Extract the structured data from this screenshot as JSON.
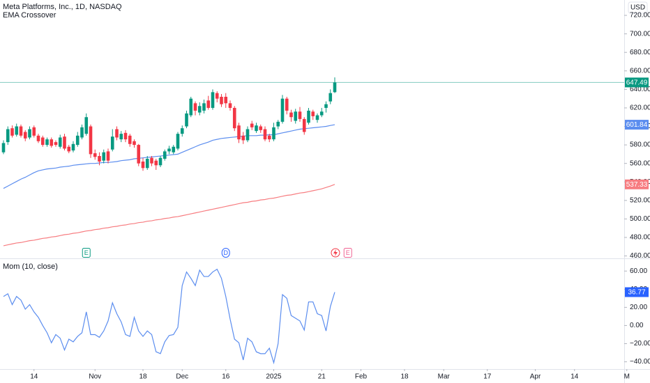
{
  "header": {
    "symbol": "Meta Platforms, Inc., 1D, NASDAQ",
    "indicator": "EMA Crossover",
    "currency": "USD"
  },
  "chart_data": [
    {
      "type": "candlestick",
      "up_color": "#089981",
      "down_color": "#f23645",
      "xlim": [
        -0.8,
        142.4
      ],
      "ylim": [
        457.4,
        736.6
      ],
      "yticks": [
        {
          "value": 460,
          "label": "460.00"
        },
        {
          "value": 480,
          "label": "480.00"
        },
        {
          "value": 500,
          "label": "500.00"
        },
        {
          "value": 520,
          "label": "520.00"
        },
        {
          "value": 540,
          "label": "540.00"
        },
        {
          "value": 560,
          "label": "560.00"
        },
        {
          "value": 580,
          "label": "580.00"
        },
        {
          "value": 600,
          "label": "600.00"
        },
        {
          "value": 620,
          "label": "620.00"
        },
        {
          "value": 640,
          "label": "640.00"
        },
        {
          "value": 660,
          "label": "660.00"
        },
        {
          "value": 680,
          "label": "680.00"
        },
        {
          "value": 700,
          "label": "700.00"
        },
        {
          "value": 720,
          "label": "720.00"
        }
      ],
      "open": [
        572,
        583,
        598,
        591,
        600,
        594,
        588,
        599,
        590,
        588,
        580,
        586,
        583,
        578,
        589,
        578,
        574,
        580,
        588,
        592,
        600,
        571,
        568,
        563,
        573,
        575,
        597,
        586,
        593,
        590,
        584,
        580,
        562,
        555,
        566,
        563,
        558,
        565,
        573,
        572,
        576,
        592,
        600,
        612,
        625,
        615,
        617,
        628,
        620,
        636,
        632,
        632,
        625,
        620,
        601,
        590,
        585,
        603,
        595,
        600,
        597,
        590,
        586,
        600,
        605,
        630,
        615,
        606,
        616,
        608,
        604,
        616,
        607,
        612,
        620,
        627,
        637
      ],
      "high": [
        585,
        600,
        601,
        603,
        602,
        596,
        600,
        601,
        592,
        590,
        588,
        588,
        585,
        591,
        592,
        580,
        584,
        594,
        602,
        614,
        602,
        575,
        572,
        575,
        576,
        597,
        600,
        595,
        596,
        592,
        586,
        581,
        566,
        568,
        568,
        565,
        568,
        575,
        579,
        580,
        594,
        601,
        617,
        632,
        627,
        626,
        629,
        633,
        640,
        638,
        635,
        636,
        628,
        622,
        604,
        594,
        600,
        606,
        604,
        602,
        600,
        592,
        604,
        607,
        634,
        632,
        618,
        619,
        621,
        610,
        620,
        618,
        614,
        620,
        627,
        640,
        653
      ],
      "low": [
        570,
        580,
        588,
        589,
        588,
        584,
        586,
        588,
        582,
        578,
        578,
        577,
        578,
        576,
        574,
        571,
        572,
        578,
        586,
        590,
        566,
        564,
        558,
        560,
        560,
        573,
        585,
        583,
        583,
        578,
        577,
        557,
        552,
        553,
        557,
        553,
        556,
        563,
        570,
        570,
        574,
        589,
        598,
        610,
        612,
        612,
        614,
        618,
        618,
        626,
        621,
        620,
        617,
        595,
        582,
        581,
        583,
        596,
        593,
        593,
        584,
        583,
        584,
        597,
        603,
        613,
        605,
        603,
        605,
        591,
        602,
        607,
        604,
        610,
        615,
        624,
        636
      ],
      "close": [
        582,
        597,
        590,
        600,
        590,
        587,
        597,
        590,
        584,
        580,
        586,
        579,
        580,
        588,
        576,
        573,
        581,
        590,
        599,
        610,
        570,
        567,
        562,
        572,
        563,
        589,
        588,
        592,
        586,
        581,
        580,
        560,
        555,
        565,
        560,
        558,
        566,
        573,
        576,
        578,
        592,
        598,
        614,
        630,
        617,
        622,
        625,
        620,
        637,
        630,
        624,
        625,
        620,
        598,
        586,
        585,
        597,
        599,
        601,
        596,
        586,
        586,
        599,
        605,
        630,
        617,
        610,
        616,
        608,
        594,
        617,
        611,
        612,
        616,
        624,
        636,
        647.49
      ],
      "lines": [
        {
          "color": "#5b8def",
          "values": [
            533,
            535.5,
            538,
            540.5,
            543,
            545,
            547.5,
            550,
            552,
            553,
            554,
            554.5,
            555,
            556,
            556.5,
            557,
            558,
            558.5,
            559,
            559.5,
            560,
            560,
            560.5,
            561,
            561,
            561.5,
            562,
            563,
            563.5,
            564,
            565,
            565.5,
            566,
            566.5,
            567,
            567.5,
            568,
            568.5,
            569,
            569.5,
            570,
            572,
            574,
            576,
            578,
            580,
            581.5,
            583,
            585,
            586,
            587,
            587.5,
            588,
            588.5,
            589,
            589.5,
            590,
            590,
            590,
            590.5,
            590.5,
            591,
            591,
            592,
            593,
            594,
            595,
            596,
            597,
            597.5,
            598,
            598.5,
            599,
            599.5,
            600,
            601,
            601.84
          ]
        },
        {
          "color": "#f77c80",
          "values": [
            471,
            472,
            473,
            474,
            474.5,
            475.5,
            476.5,
            477,
            478,
            479,
            479.5,
            480.5,
            481,
            482,
            483,
            483.5,
            484.5,
            485,
            486,
            487,
            487.5,
            488.5,
            489,
            490,
            490.5,
            491.5,
            492,
            493,
            493.5,
            494.5,
            495,
            496,
            496.5,
            497.5,
            498,
            499,
            499.5,
            500.5,
            501,
            502,
            502.5,
            503.5,
            504.5,
            505.5,
            506.5,
            507.5,
            508.5,
            509.5,
            510.5,
            511.5,
            512.5,
            513.5,
            514.5,
            515.5,
            516.5,
            517.5,
            518,
            519,
            519.5,
            520.5,
            521,
            522,
            522.5,
            523.5,
            524.5,
            525.5,
            526,
            527,
            528,
            528.5,
            529.5,
            530.5,
            531.5,
            532.5,
            534,
            535.5,
            537.33
          ]
        }
      ],
      "events": [
        {
          "index": 19,
          "label": "E",
          "color": "#089981"
        },
        {
          "index": 51,
          "label": "D",
          "color": "#2962ff"
        },
        {
          "index": 79,
          "label": "E",
          "color": "#f06292"
        }
      ]
    },
    {
      "type": "line",
      "title": "Mom (10, close)",
      "xlim": [
        -0.8,
        142.4
      ],
      "ylim": [
        -48,
        74
      ],
      "yticks": [
        {
          "value": -40,
          "label": "−40.00"
        },
        {
          "value": -20,
          "label": "−20.00"
        },
        {
          "value": 0,
          "label": "0.00"
        },
        {
          "value": 20,
          "label": "20.00"
        },
        {
          "value": 40,
          "label": "40.00"
        },
        {
          "value": 60,
          "label": "60.00"
        }
      ],
      "xticks": [
        {
          "value": 7,
          "label": "14"
        },
        {
          "value": 21,
          "label": "Nov"
        },
        {
          "value": 32,
          "label": "18"
        },
        {
          "value": 41,
          "label": "Dec"
        },
        {
          "value": 51,
          "label": "16"
        },
        {
          "value": 62,
          "label": "2025"
        },
        {
          "value": 73,
          "label": "21"
        },
        {
          "value": 82,
          "label": "Feb"
        },
        {
          "value": 92,
          "label": "18"
        },
        {
          "value": 101,
          "label": "Mar"
        },
        {
          "value": 111,
          "label": "17"
        },
        {
          "value": 122,
          "label": "Apr"
        },
        {
          "value": 131,
          "label": "14"
        },
        {
          "value": 143,
          "label": "M"
        }
      ],
      "series": [
        {
          "color": "#5b8def",
          "box_color": "#2962ff",
          "values": [
            32,
            35,
            23,
            32,
            28,
            18,
            23,
            15,
            9,
            0,
            -8,
            -19,
            -10,
            -14,
            -27,
            -15,
            -18,
            -12,
            -8,
            15,
            -10,
            -10,
            -13,
            -6,
            5,
            25,
            13,
            4,
            -10,
            -12,
            9,
            -6,
            -12,
            -6,
            -10,
            -29,
            -31,
            -18,
            -11,
            -10,
            -2,
            44,
            59,
            52,
            44,
            61,
            54,
            54,
            59,
            62,
            52,
            32,
            7,
            -15,
            -19,
            -38,
            -14,
            -18,
            -29,
            -31,
            -31,
            -25,
            -41,
            -20,
            34,
            30,
            11,
            8,
            5,
            -5,
            26,
            26,
            13,
            11,
            -6,
            21,
            36.77
          ]
        }
      ]
    }
  ]
}
